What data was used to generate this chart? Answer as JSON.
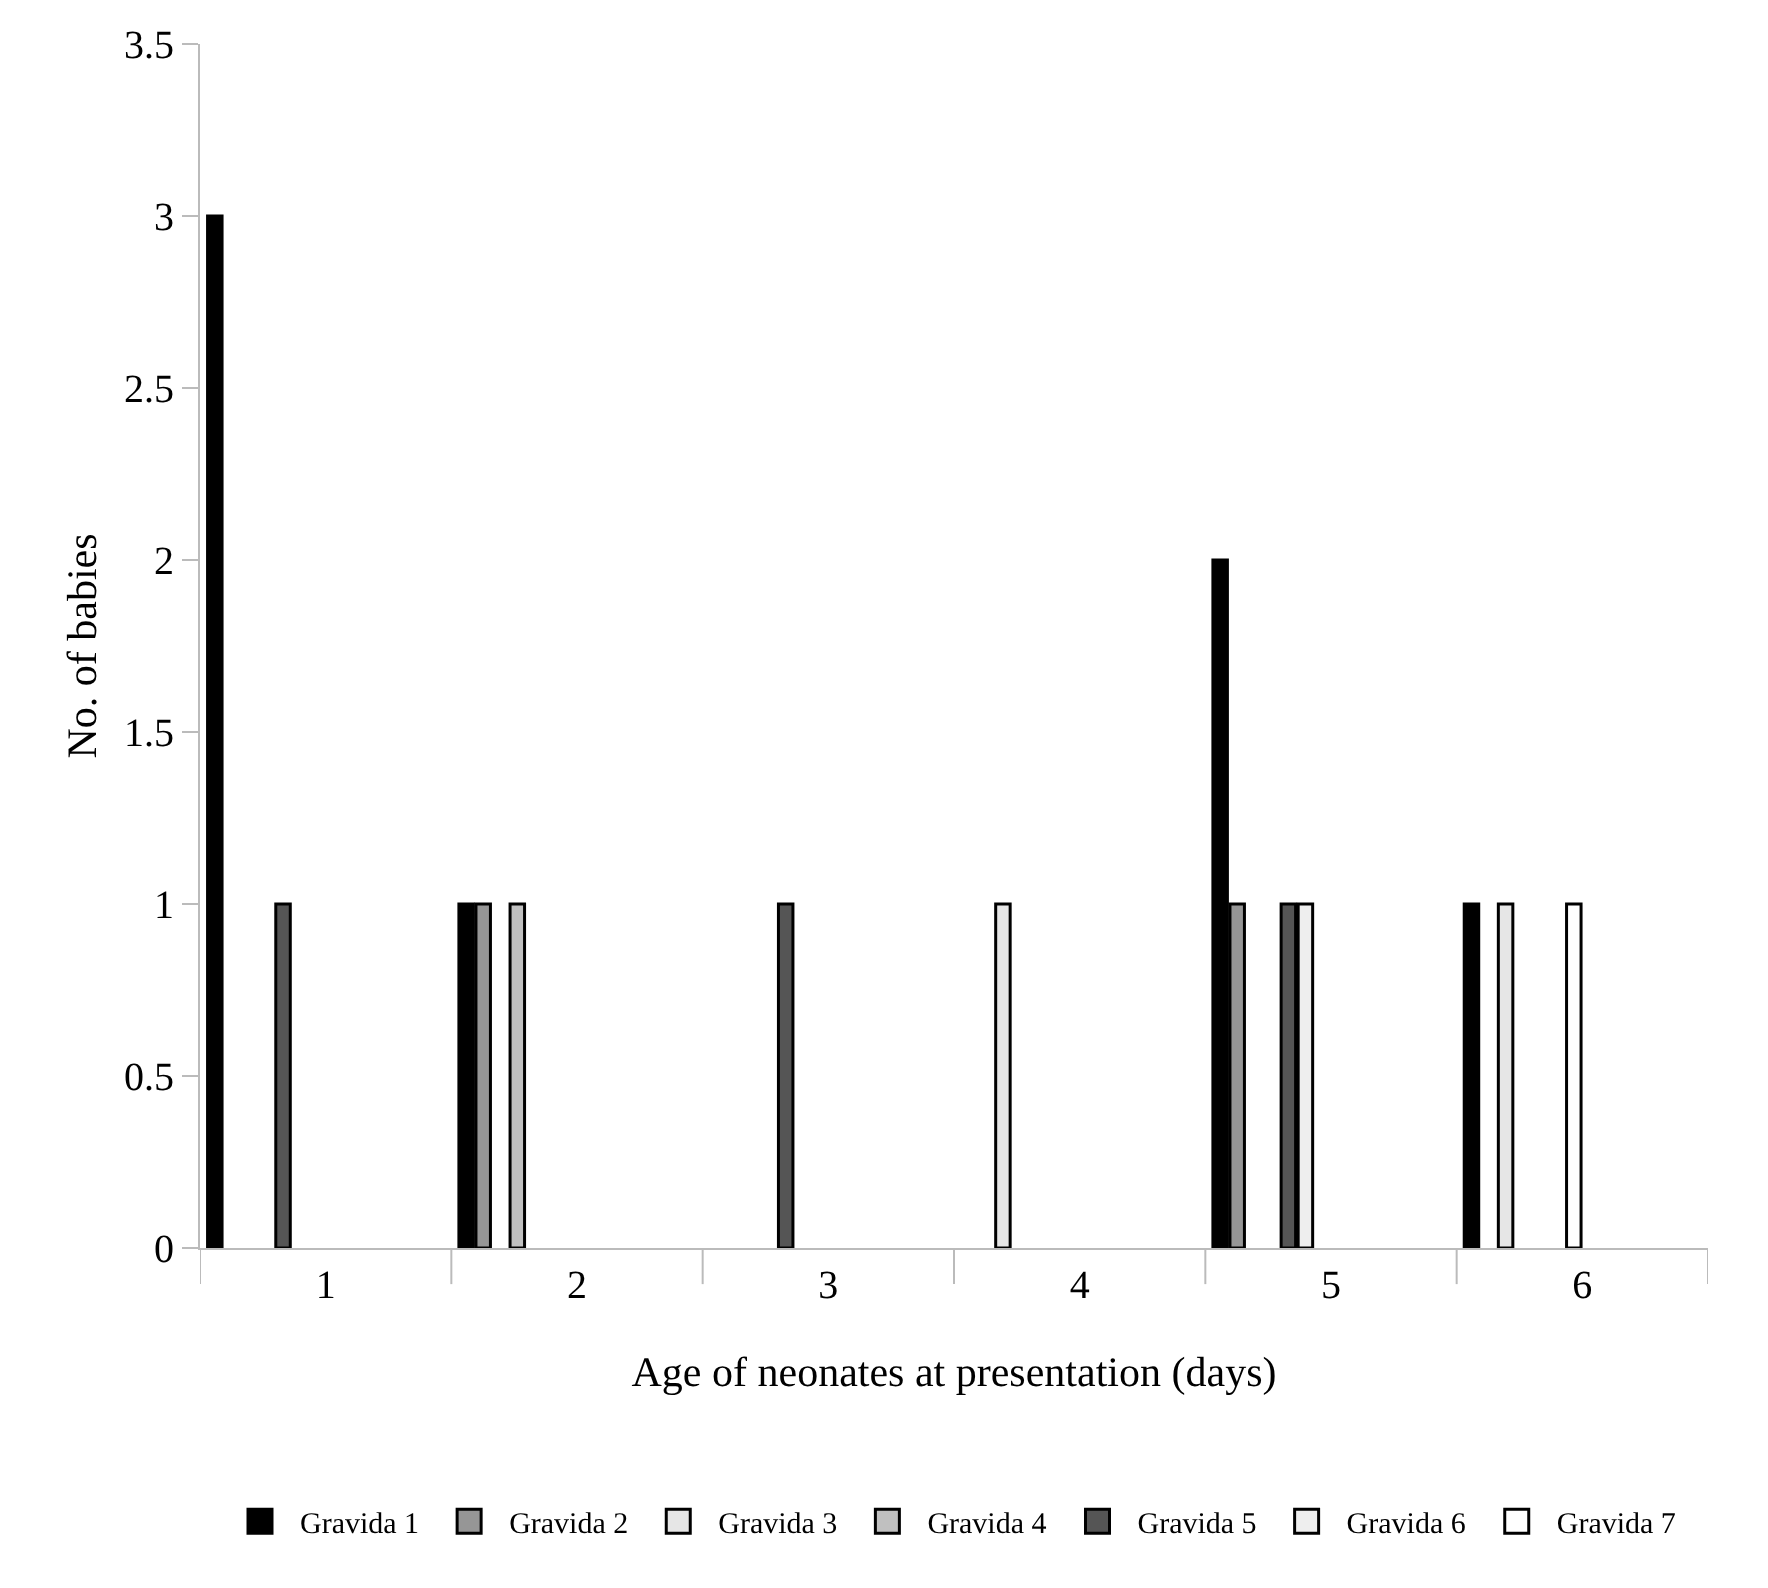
{
  "chart_data": {
    "type": "bar",
    "xlabel": "Age of neonates at presentation (days)",
    "ylabel": "No. of babies",
    "categories": [
      "1",
      "2",
      "3",
      "4",
      "5",
      "6"
    ],
    "series": [
      {
        "name": "Gravida 1",
        "color": "#000000",
        "values": [
          3,
          1,
          0,
          0,
          2,
          1
        ]
      },
      {
        "name": "Gravida 2",
        "color": "#969696",
        "values": [
          0,
          1,
          0,
          0,
          1,
          0
        ]
      },
      {
        "name": "Gravida 3",
        "color": "#e6e6e6",
        "values": [
          0,
          0,
          0,
          1,
          0,
          1
        ]
      },
      {
        "name": "Gravida 4",
        "color": "#c0c0c0",
        "values": [
          0,
          1,
          0,
          0,
          0,
          0
        ]
      },
      {
        "name": "Gravida 5",
        "color": "#555555",
        "values": [
          1,
          0,
          1,
          0,
          1,
          0
        ]
      },
      {
        "name": "Gravida 6",
        "color": "#eeeeee",
        "values": [
          0,
          0,
          0,
          0,
          1,
          0
        ]
      },
      {
        "name": "Gravida 7",
        "color": "#ffffff",
        "values": [
          0,
          0,
          0,
          0,
          0,
          1
        ]
      }
    ],
    "ylim": [
      0,
      3.5
    ],
    "yticks": [
      0,
      0.5,
      1,
      1.5,
      2,
      2.5,
      3,
      3.5
    ],
    "grid": false,
    "legend": "bottom"
  }
}
